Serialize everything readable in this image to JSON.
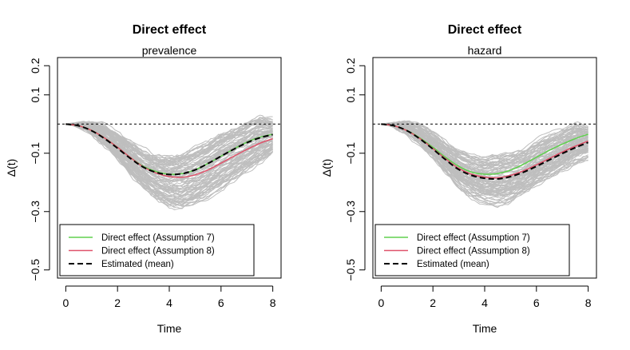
{
  "chart_data": [
    {
      "type": "line",
      "title": "Direct effect",
      "subtitle": "prevalence",
      "xlabel": "Time",
      "ylabel": "Δ(t)",
      "xlim": [
        0,
        8
      ],
      "ylim": [
        -0.5,
        0.2
      ],
      "xticks": [
        0,
        2,
        4,
        6,
        8
      ],
      "yticks": [
        0.2,
        0.1,
        -0.1,
        -0.3,
        -0.5
      ],
      "ytick_labels": [
        "0.2",
        "0.1",
        "−0.1",
        "−0.3",
        "−0.5"
      ],
      "reference_line_y": 0,
      "simulations_band": {
        "color": "#bebebe",
        "x": [
          0,
          0.5,
          1,
          1.5,
          2,
          2.5,
          3,
          3.5,
          4,
          4.5,
          5,
          5.5,
          6,
          6.5,
          7,
          7.5,
          8
        ],
        "lower": [
          0,
          -0.008,
          -0.03,
          -0.07,
          -0.12,
          -0.17,
          -0.22,
          -0.26,
          -0.285,
          -0.29,
          -0.275,
          -0.25,
          -0.22,
          -0.19,
          -0.16,
          -0.13,
          -0.1
        ],
        "upper": [
          0,
          0.003,
          0,
          -0.01,
          -0.035,
          -0.065,
          -0.095,
          -0.11,
          -0.115,
          -0.105,
          -0.085,
          -0.065,
          -0.04,
          -0.02,
          0,
          0.02,
          0.01
        ]
      },
      "series": [
        {
          "name": "Direct effect (Assumption 7)",
          "color": "#61D04F",
          "dash": false,
          "x": [
            0,
            0.5,
            1,
            1.5,
            2,
            2.5,
            3,
            3.5,
            4,
            4.5,
            5,
            5.5,
            6,
            6.5,
            7,
            7.5,
            8
          ],
          "y": [
            0,
            -0.006,
            -0.022,
            -0.048,
            -0.08,
            -0.115,
            -0.145,
            -0.163,
            -0.172,
            -0.17,
            -0.157,
            -0.135,
            -0.11,
            -0.085,
            -0.062,
            -0.045,
            -0.035
          ]
        },
        {
          "name": "Direct effect (Assumption 8)",
          "color": "#DF536B",
          "dash": false,
          "x": [
            0,
            0.5,
            1,
            1.5,
            2,
            2.5,
            3,
            3.5,
            4,
            4.5,
            5,
            5.5,
            6,
            6.5,
            7,
            7.5,
            8
          ],
          "y": [
            0,
            -0.006,
            -0.022,
            -0.048,
            -0.08,
            -0.115,
            -0.147,
            -0.168,
            -0.18,
            -0.182,
            -0.174,
            -0.157,
            -0.134,
            -0.11,
            -0.087,
            -0.066,
            -0.05
          ]
        },
        {
          "name": "Estimated (mean)",
          "color": "#000000",
          "dash": true,
          "x": [
            0,
            0.5,
            1,
            1.5,
            2,
            2.5,
            3,
            3.5,
            4,
            4.5,
            5,
            5.5,
            6,
            6.5,
            7,
            7.5,
            8
          ],
          "y": [
            0,
            -0.006,
            -0.023,
            -0.05,
            -0.083,
            -0.118,
            -0.148,
            -0.166,
            -0.173,
            -0.17,
            -0.157,
            -0.135,
            -0.11,
            -0.086,
            -0.064,
            -0.047,
            -0.036
          ]
        }
      ],
      "legend": [
        "Direct effect (Assumption 7)",
        "Direct effect (Assumption 8)",
        "Estimated (mean)"
      ]
    },
    {
      "type": "line",
      "title": "Direct effect",
      "subtitle": "hazard",
      "xlabel": "Time",
      "ylabel": "Δ(t)",
      "xlim": [
        0,
        8
      ],
      "ylim": [
        -0.5,
        0.2
      ],
      "xticks": [
        0,
        2,
        4,
        6,
        8
      ],
      "yticks": [
        0.2,
        0.1,
        -0.1,
        -0.3,
        -0.5
      ],
      "ytick_labels": [
        "0.2",
        "0.1",
        "−0.1",
        "−0.3",
        "−0.5"
      ],
      "reference_line_y": 0,
      "simulations_band": {
        "color": "#bebebe",
        "x": [
          0,
          0.5,
          1,
          1.5,
          2,
          2.5,
          3,
          3.5,
          4,
          4.5,
          5,
          5.5,
          6,
          6.5,
          7,
          7.5,
          8
        ],
        "lower": [
          0,
          -0.008,
          -0.03,
          -0.07,
          -0.12,
          -0.17,
          -0.22,
          -0.255,
          -0.275,
          -0.28,
          -0.27,
          -0.245,
          -0.215,
          -0.19,
          -0.165,
          -0.14,
          -0.12
        ],
        "upper": [
          0,
          0.003,
          0,
          -0.01,
          -0.035,
          -0.065,
          -0.095,
          -0.11,
          -0.12,
          -0.11,
          -0.1,
          -0.09,
          -0.06,
          -0.04,
          -0.02,
          0,
          -0.01
        ]
      },
      "series": [
        {
          "name": "Direct effect (Assumption 7)",
          "color": "#61D04F",
          "dash": false,
          "x": [
            0,
            0.5,
            1,
            1.5,
            2,
            2.5,
            3,
            3.5,
            4,
            4.5,
            5,
            5.5,
            6,
            6.5,
            7,
            7.5,
            8
          ],
          "y": [
            0,
            -0.006,
            -0.022,
            -0.048,
            -0.08,
            -0.115,
            -0.145,
            -0.165,
            -0.172,
            -0.17,
            -0.158,
            -0.138,
            -0.114,
            -0.09,
            -0.069,
            -0.05,
            -0.035
          ]
        },
        {
          "name": "Direct effect (Assumption 8)",
          "color": "#DF536B",
          "dash": false,
          "x": [
            0,
            0.5,
            1,
            1.5,
            2,
            2.5,
            3,
            3.5,
            4,
            4.5,
            5,
            5.5,
            6,
            6.5,
            7,
            7.5,
            8
          ],
          "y": [
            0,
            -0.006,
            -0.023,
            -0.05,
            -0.084,
            -0.12,
            -0.152,
            -0.172,
            -0.182,
            -0.184,
            -0.176,
            -0.16,
            -0.14,
            -0.118,
            -0.096,
            -0.076,
            -0.058
          ]
        },
        {
          "name": "Estimated (mean)",
          "color": "#000000",
          "dash": true,
          "x": [
            0,
            0.5,
            1,
            1.5,
            2,
            2.5,
            3,
            3.5,
            4,
            4.5,
            5,
            5.5,
            6,
            6.5,
            7,
            7.5,
            8
          ],
          "y": [
            0,
            -0.006,
            -0.023,
            -0.051,
            -0.086,
            -0.123,
            -0.156,
            -0.176,
            -0.186,
            -0.188,
            -0.18,
            -0.165,
            -0.145,
            -0.123,
            -0.101,
            -0.081,
            -0.063
          ]
        }
      ],
      "legend": [
        "Direct effect (Assumption 7)",
        "Direct effect (Assumption 8)",
        "Estimated (mean)"
      ]
    }
  ]
}
